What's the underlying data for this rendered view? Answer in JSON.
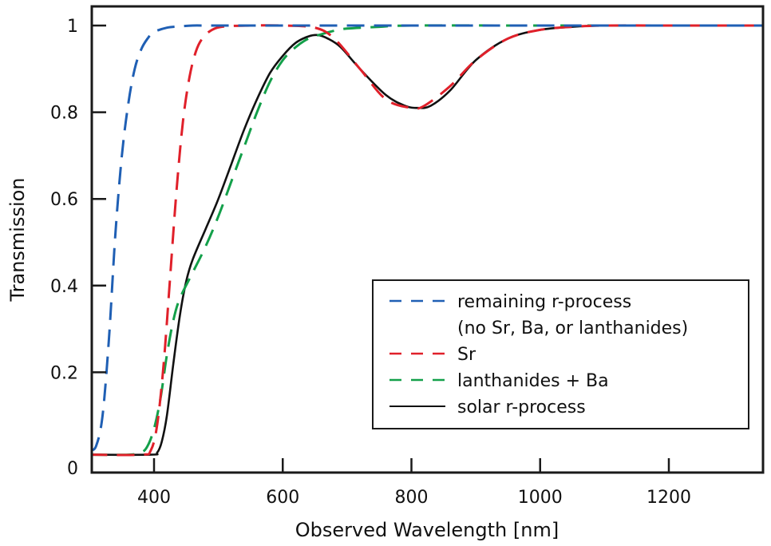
{
  "chart_data": {
    "type": "line",
    "title": "",
    "xlabel": "Observed Wavelength [nm]",
    "ylabel": "Transmission",
    "xlim": [
      300,
      1350
    ],
    "ylim": [
      0,
      1.05
    ],
    "xticks": [
      400,
      600,
      800,
      1000,
      1200
    ],
    "xtick_labels": [
      "400",
      "600",
      "800",
      "1000",
      "1200"
    ],
    "yticks": [
      0,
      0.2,
      0.4,
      0.6,
      0.8,
      1
    ],
    "ytick_labels": [
      "0",
      "0.2",
      "0.4",
      "0.6",
      "0.8",
      "1"
    ],
    "grid": false,
    "legend_position": "bottom-right",
    "series": [
      {
        "name": "remaining r-process (no Sr, Ba, or lanthanides)",
        "legend_lines": [
          "remaining r-process",
          "(no Sr, Ba, or lanthanides)"
        ],
        "color": "#1f5fb4",
        "style": "dashed",
        "x": [
          300,
          310,
          320,
          330,
          340,
          350,
          360,
          370,
          380,
          390,
          400,
          420,
          440,
          460,
          480,
          500,
          600,
          800,
          1000,
          1200,
          1350
        ],
        "y": [
          0.02,
          0.03,
          0.1,
          0.28,
          0.52,
          0.7,
          0.82,
          0.9,
          0.945,
          0.97,
          0.985,
          0.995,
          0.998,
          1.0,
          1.0,
          1.0,
          1.0,
          1.0,
          1.0,
          1.0,
          1.0
        ]
      },
      {
        "name": "Sr",
        "legend_lines": [
          "Sr"
        ],
        "color": "#e0202a",
        "style": "dashed",
        "x": [
          300,
          380,
          395,
          405,
          415,
          425,
          435,
          445,
          455,
          465,
          475,
          490,
          510,
          550,
          600,
          650,
          680,
          720,
          760,
          800,
          820,
          860,
          900,
          950,
          1000,
          1050,
          1100,
          1200,
          1350
        ],
        "y": [
          0.01,
          0.01,
          0.02,
          0.08,
          0.22,
          0.42,
          0.62,
          0.78,
          0.88,
          0.94,
          0.97,
          0.99,
          0.998,
          1.0,
          1.0,
          0.995,
          0.97,
          0.9,
          0.83,
          0.81,
          0.815,
          0.86,
          0.92,
          0.97,
          0.99,
          0.997,
          1.0,
          1.0,
          1.0
        ]
      },
      {
        "name": "lanthanides + Ba",
        "legend_lines": [
          "lanthanides + Ba"
        ],
        "color": "#13a04a",
        "style": "dashed",
        "x": [
          300,
          360,
          380,
          390,
          400,
          410,
          420,
          430,
          440,
          460,
          480,
          500,
          520,
          540,
          560,
          580,
          600,
          620,
          640,
          660,
          680,
          700,
          750,
          800,
          1000,
          1350
        ],
        "y": [
          0.01,
          0.01,
          0.015,
          0.03,
          0.07,
          0.14,
          0.24,
          0.32,
          0.37,
          0.43,
          0.49,
          0.56,
          0.64,
          0.72,
          0.8,
          0.87,
          0.92,
          0.95,
          0.97,
          0.98,
          0.988,
          0.993,
          0.997,
          1.0,
          1.0,
          1.0
        ]
      },
      {
        "name": "solar r-process",
        "legend_lines": [
          "solar r-process"
        ],
        "color": "#111111",
        "style": "solid",
        "x": [
          300,
          395,
          405,
          412,
          420,
          430,
          440,
          450,
          460,
          480,
          500,
          520,
          540,
          560,
          580,
          600,
          620,
          640,
          655,
          670,
          690,
          720,
          760,
          790,
          810,
          830,
          860,
          900,
          950,
          1000,
          1050,
          1100,
          1200,
          1350
        ],
        "y": [
          0.01,
          0.01,
          0.015,
          0.04,
          0.1,
          0.22,
          0.33,
          0.41,
          0.46,
          0.53,
          0.6,
          0.68,
          0.76,
          0.83,
          0.89,
          0.93,
          0.96,
          0.975,
          0.978,
          0.97,
          0.95,
          0.9,
          0.84,
          0.815,
          0.81,
          0.815,
          0.85,
          0.92,
          0.97,
          0.99,
          0.997,
          1.0,
          1.0,
          1.0
        ]
      }
    ]
  }
}
